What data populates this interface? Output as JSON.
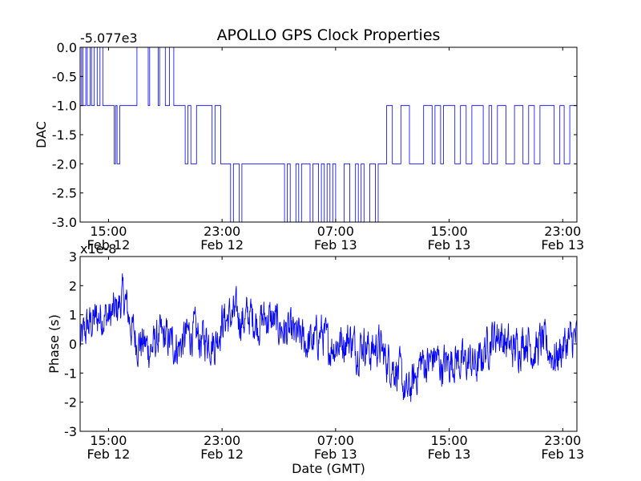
{
  "figure": {
    "title": "APOLLO GPS Clock Properties",
    "xlabel": "Date (GMT)"
  },
  "colors": {
    "line": "#0000ff",
    "axes": "#000000",
    "background": "#ffffff"
  },
  "chart_data": [
    {
      "type": "line",
      "ylabel": "DAC",
      "offset_label": "-5.077e3",
      "xlim": [
        0,
        35
      ],
      "ylim": [
        -3.0,
        0.0
      ],
      "yticks": [
        0.0,
        -0.5,
        -1.0,
        -1.5,
        -2.0,
        -2.5,
        -3.0
      ],
      "ytick_labels": [
        "0.0",
        "-0.5",
        "-1.0",
        "-1.5",
        "-2.0",
        "-2.5",
        "-3.0"
      ],
      "xticks": [
        {
          "hour": 2,
          "label": [
            "15:00",
            "Feb 12"
          ]
        },
        {
          "hour": 10,
          "label": [
            "23:00",
            "Feb 12"
          ]
        },
        {
          "hour": 18,
          "label": [
            "07:00",
            "Feb 13"
          ]
        },
        {
          "hour": 26,
          "label": [
            "15:00",
            "Feb 13"
          ]
        },
        {
          "hour": 34,
          "label": [
            "23:00",
            "Feb 13"
          ]
        }
      ],
      "series": [
        {
          "values_note": "hours from 13:00 Feb 12; DAC step values",
          "x": [
            0.0,
            0.1,
            0.2,
            0.4,
            0.5,
            0.7,
            0.8,
            1.0,
            1.2,
            1.4,
            1.6,
            2.4,
            2.5,
            2.6,
            2.8,
            4.0,
            4.8,
            4.9,
            5.5,
            5.6,
            6.0,
            6.3,
            6.6,
            6.9,
            7.4,
            7.6,
            7.8,
            8.2,
            9.2,
            9.3,
            9.5,
            9.9,
            10.0,
            10.2,
            10.6,
            10.8,
            11.2,
            11.4,
            12.2,
            14.4,
            14.6,
            14.8,
            15.2,
            15.4,
            15.6,
            16.2,
            16.4,
            16.8,
            17.0,
            17.2,
            17.4,
            17.6,
            17.8,
            18.0,
            18.6,
            19.0,
            19.4,
            19.6,
            19.8,
            20.0,
            20.4,
            20.8,
            21.0,
            21.4,
            21.6,
            22.0,
            22.6,
            23.2,
            24.2,
            24.8,
            25.0,
            25.4,
            25.6,
            26.0,
            26.4,
            26.8,
            27.2,
            27.6,
            28.0,
            28.4,
            28.8,
            29.0,
            29.4,
            30.0,
            30.6,
            31.0,
            31.2,
            31.6,
            32.0,
            32.4,
            33.0,
            33.4,
            33.8,
            34.1,
            34.5,
            35.0
          ],
          "y": [
            -1,
            0,
            -1,
            0,
            -1,
            0,
            -1,
            0,
            -1,
            0,
            -1,
            -2,
            -1,
            -2,
            -1,
            0,
            -1,
            0,
            -1,
            0,
            -1,
            0,
            -1,
            -1,
            -2,
            -1,
            -2,
            -1,
            -1,
            -2,
            -1,
            -2,
            -2,
            -2,
            -3,
            -2,
            -3,
            -2,
            -2,
            -3,
            -2,
            -3,
            -2,
            -3,
            -2,
            -3,
            -2,
            -3,
            -2,
            -3,
            -2,
            -3,
            -2,
            -3,
            -2,
            -3,
            -2,
            -3,
            -2,
            -3,
            -2,
            -3,
            -2,
            -2,
            -1,
            -2,
            -1,
            -2,
            -1,
            -2,
            -1,
            -2,
            -1,
            -1,
            -2,
            -1,
            -2,
            -1,
            -1,
            -2,
            -1,
            -2,
            -1,
            -2,
            -1,
            -1,
            -2,
            -1,
            -2,
            -1,
            -1,
            -2,
            -1,
            -2,
            -1,
            -2
          ]
        }
      ]
    },
    {
      "type": "line",
      "ylabel": "Phase (s)",
      "offset_label": "x1e-8",
      "xlim": [
        0,
        35
      ],
      "ylim": [
        -3,
        3
      ],
      "yticks": [
        3,
        2,
        1,
        0,
        -1,
        -2,
        -3
      ],
      "ytick_labels": [
        "3",
        "2",
        "1",
        "0",
        "-1",
        "-2",
        "-3"
      ],
      "xticks": [
        {
          "hour": 2,
          "label": [
            "15:00",
            "Feb 12"
          ]
        },
        {
          "hour": 10,
          "label": [
            "23:00",
            "Feb 12"
          ]
        },
        {
          "hour": 18,
          "label": [
            "07:00",
            "Feb 13"
          ]
        },
        {
          "hour": 26,
          "label": [
            "15:00",
            "Feb 13"
          ]
        },
        {
          "hour": 34,
          "label": [
            "23:00",
            "Feb 13"
          ]
        }
      ],
      "trend": {
        "x": [
          0,
          0.5,
          1,
          1.5,
          2,
          2.5,
          3,
          3.2,
          3.6,
          4,
          4.5,
          5,
          5.5,
          6,
          6.5,
          7,
          7.5,
          8,
          8.5,
          9,
          9.5,
          10,
          10.5,
          11,
          11.5,
          12,
          12.5,
          13,
          13.5,
          14,
          14.5,
          15,
          15.5,
          16,
          16.5,
          17,
          17.5,
          18,
          18.5,
          19,
          19.5,
          20,
          20.5,
          21,
          21.5,
          22,
          22.5,
          23,
          23.5,
          24,
          24.5,
          25,
          25.5,
          26,
          26.5,
          27,
          27.5,
          28,
          28.5,
          29,
          29.5,
          30,
          30.5,
          31,
          31.5,
          32,
          32.5,
          33,
          33.5,
          34,
          34.5,
          35
        ],
        "y": [
          0.0,
          0.6,
          0.8,
          1.0,
          0.9,
          1.1,
          1.6,
          1.4,
          0.6,
          0.1,
          0.0,
          -0.2,
          0.2,
          0.2,
          0.0,
          -0.1,
          0.3,
          0.4,
          0.1,
          0.2,
          0.0,
          0.8,
          0.9,
          1.0,
          0.8,
          1.0,
          0.7,
          0.9,
          0.8,
          0.6,
          0.4,
          0.3,
          0.2,
          0.0,
          0.1,
          0.4,
          -0.1,
          0.0,
          0.1,
          0.2,
          -0.2,
          0.1,
          -0.3,
          0.0,
          -0.5,
          -0.7,
          -1.0,
          -1.8,
          -1.3,
          -0.6,
          -0.7,
          -0.4,
          -0.8,
          -0.6,
          -0.5,
          -0.7,
          -0.6,
          -0.8,
          -0.2,
          0.2,
          0.4,
          0.0,
          -0.2,
          0.0,
          0.2,
          -0.3,
          0.1,
          -0.2,
          -0.5,
          -0.1,
          0.1,
          0.2
        ]
      },
      "noise_amplitude": 0.7,
      "series": [
        {
          "kind": "dense noisy phase trace"
        }
      ]
    }
  ]
}
